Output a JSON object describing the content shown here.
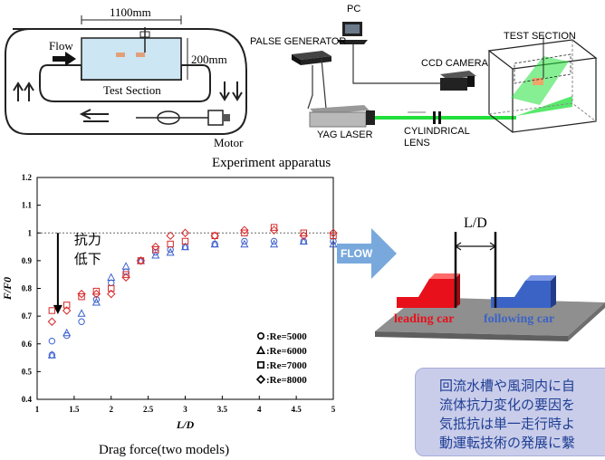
{
  "water_tunnel": {
    "length_label": "1100mm",
    "height_label": "200mm",
    "flow_label": "Flow",
    "section_label": "Test Section",
    "motor_label": "Motor",
    "caption": "Experiment apparatus"
  },
  "piv_setup": {
    "pc_label": "PC",
    "pulse_label": "PALSE GENERATOR",
    "ccd_label": "CCD CAMERA",
    "test_section_label": "TEST SECTION",
    "yag_label": "YAG LASER",
    "cyl_label_1": "CYLINDRICAL",
    "cyl_label_2": "LENS"
  },
  "cars": {
    "ld_label": "L/D",
    "flow_label": "FLOW",
    "leading_label": "leading car",
    "following_label": "following car",
    "leading_color": "#e8101a",
    "following_color": "#3b63c6"
  },
  "chart_data": {
    "type": "scatter",
    "title": "",
    "caption": "Drag force(two models)",
    "xlabel": "L/D",
    "ylabel": "F/F0",
    "xlim": [
      1,
      5
    ],
    "ylim": [
      0.4,
      1.2
    ],
    "xticks": [
      "1",
      "1.5",
      "2",
      "2.5",
      "3",
      "3.5",
      "4",
      "4.5",
      "5"
    ],
    "yticks": [
      "0.4",
      "0.5",
      "0.6",
      "0.7",
      "0.8",
      "0.9",
      "1",
      "1.1",
      "1.2"
    ],
    "reference_line_y": 1.0,
    "annotation_1": "抗力",
    "annotation_2": "低下",
    "grid": false,
    "legend_position": "bottom-right",
    "series": [
      {
        "name": "Re=5000",
        "marker": "circle",
        "color": "#3b5fd0",
        "x": [
          1.2,
          1.2,
          1.4,
          1.6,
          1.8,
          2.0,
          2.2,
          2.4,
          2.6,
          2.8,
          3.0,
          3.4,
          3.8,
          4.2,
          4.6,
          5.0
        ],
        "y": [
          0.56,
          0.61,
          0.63,
          0.68,
          0.76,
          0.82,
          0.86,
          0.9,
          0.93,
          0.94,
          0.95,
          0.96,
          0.97,
          0.97,
          0.97,
          0.97
        ]
      },
      {
        "name": "Re=6000",
        "marker": "triangle",
        "color": "#3b5fd0",
        "x": [
          1.2,
          1.4,
          1.6,
          1.8,
          2.0,
          2.2,
          2.4,
          2.6,
          2.8,
          3.0,
          3.4,
          3.8,
          4.2,
          4.6,
          5.0
        ],
        "y": [
          0.56,
          0.64,
          0.71,
          0.75,
          0.84,
          0.88,
          0.9,
          0.92,
          0.93,
          0.95,
          0.96,
          0.96,
          0.96,
          0.97,
          0.96
        ]
      },
      {
        "name": "Re=7000",
        "marker": "square",
        "color": "#d62728",
        "x": [
          1.2,
          1.4,
          1.6,
          1.8,
          2.0,
          2.2,
          2.4,
          2.6,
          2.8,
          3.0,
          3.4,
          3.8,
          4.2,
          4.6,
          5.0
        ],
        "y": [
          0.72,
          0.74,
          0.77,
          0.79,
          0.8,
          0.85,
          0.9,
          0.94,
          0.96,
          0.97,
          0.99,
          1.0,
          1.02,
          1.0,
          0.99
        ]
      },
      {
        "name": "Re=8000",
        "marker": "diamond",
        "color": "#d62728",
        "x": [
          1.2,
          1.4,
          1.6,
          1.8,
          2.0,
          2.2,
          2.4,
          2.6,
          2.8,
          3.0,
          3.4,
          3.8,
          4.2,
          4.6,
          5.0
        ],
        "y": [
          0.68,
          0.72,
          0.78,
          0.78,
          0.78,
          0.84,
          0.9,
          0.95,
          0.99,
          1.0,
          0.99,
          1.01,
          1.01,
          0.99,
          1.0
        ]
      }
    ]
  },
  "note": {
    "line1": "回流水槽や風洞内に自",
    "line2": "流体抗力変化の要因を",
    "line3": "気抵抗は単一走行時よ",
    "line4": "動運転技術の発展に繫"
  }
}
